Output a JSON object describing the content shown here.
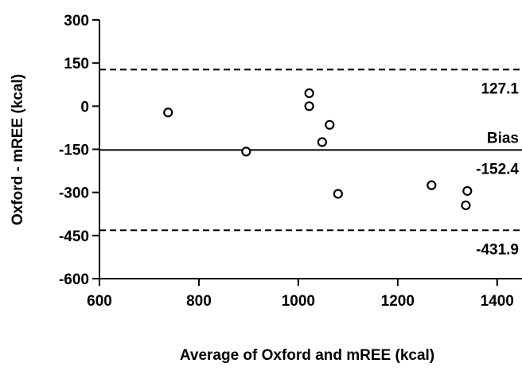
{
  "chart_data": {
    "type": "scatter",
    "xlabel": "Average of Oxford and mREE (kcal)",
    "ylabel": "Oxford - mREE (kcal)",
    "xlim": [
      600,
      1450
    ],
    "ylim": [
      -600,
      300
    ],
    "xticks": [
      600,
      800,
      1000,
      1200,
      1400
    ],
    "yticks": [
      300,
      150,
      0,
      -150,
      -300,
      -450,
      -600
    ],
    "xtick_labels": [
      "600",
      "800",
      "1000",
      "1200",
      "1400"
    ],
    "ytick_labels": [
      "300",
      "150",
      "0",
      "-150",
      "-300",
      "-450",
      "-600"
    ],
    "grid": false,
    "marker": "open-circle",
    "points": [
      {
        "x": 738,
        "y": -22
      },
      {
        "x": 895,
        "y": -158
      },
      {
        "x": 1022,
        "y": 45
      },
      {
        "x": 1022,
        "y": 0
      },
      {
        "x": 1063,
        "y": -65
      },
      {
        "x": 1048,
        "y": -125
      },
      {
        "x": 1080,
        "y": -305
      },
      {
        "x": 1268,
        "y": -275
      },
      {
        "x": 1340,
        "y": -295
      },
      {
        "x": 1337,
        "y": -345
      }
    ],
    "reference_lines": [
      {
        "value": 127.1,
        "style": "dashed",
        "label": "127.1"
      },
      {
        "value": -152.4,
        "style": "solid",
        "label": "-152.4",
        "title": "Bias"
      },
      {
        "value": -431.9,
        "style": "dashed",
        "label": "-431.9"
      }
    ]
  }
}
